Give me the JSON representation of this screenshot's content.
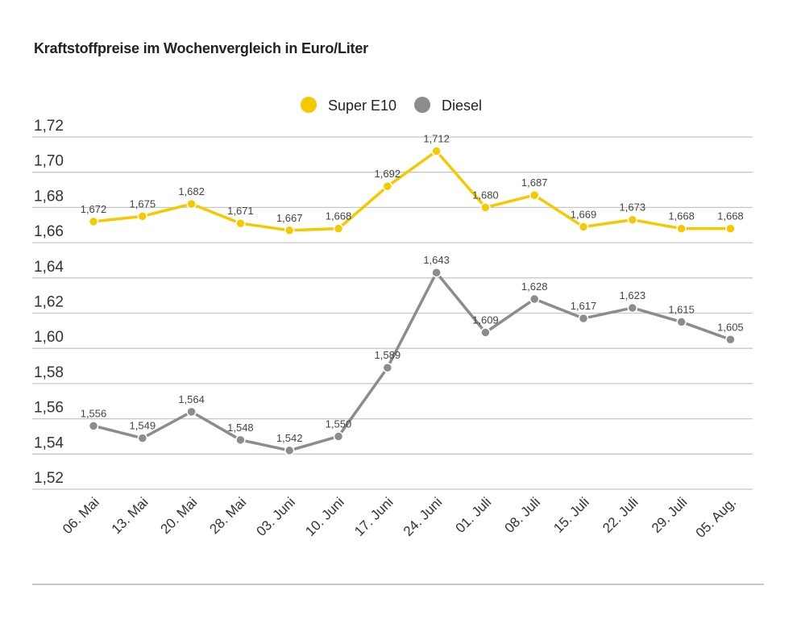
{
  "chart_data": {
    "type": "line",
    "title": "Kraftstoffpreise im Wochenvergleich in Euro/Liter",
    "categories": [
      "06. Mai",
      "13. Mai",
      "20. Mai",
      "28. Mai",
      "03. Juni",
      "10. Juni",
      "17. Juni",
      "24. Juni",
      "01. Juli",
      "08. Juli",
      "15. Juli",
      "22. Juli",
      "29. Juli",
      "05. Aug."
    ],
    "series": [
      {
        "name": "Super E10",
        "color": "#f5c900",
        "values": [
          1.672,
          1.675,
          1.682,
          1.671,
          1.667,
          1.668,
          1.692,
          1.712,
          1.68,
          1.687,
          1.669,
          1.673,
          1.668,
          1.668
        ],
        "labels": [
          "1,672",
          "1,675",
          "1,682",
          "1,671",
          "1,667",
          "1,668",
          "1,692",
          "1,712",
          "1,680",
          "1,687",
          "1,669",
          "1,673",
          "1,668",
          "1,668"
        ]
      },
      {
        "name": "Diesel",
        "color": "#8c8c8c",
        "values": [
          1.556,
          1.549,
          1.564,
          1.548,
          1.542,
          1.55,
          1.589,
          1.643,
          1.609,
          1.628,
          1.617,
          1.623,
          1.615,
          1.605
        ],
        "labels": [
          "1,556",
          "1,549",
          "1,564",
          "1,548",
          "1,542",
          "1,550",
          "1,589",
          "1,643",
          "1,609",
          "1,628",
          "1,617",
          "1,623",
          "1,615",
          "1,605"
        ]
      }
    ],
    "ylim": [
      1.52,
      1.72
    ],
    "yticks": [
      1.52,
      1.54,
      1.56,
      1.58,
      1.6,
      1.62,
      1.64,
      1.66,
      1.68,
      1.7,
      1.72
    ],
    "ytick_labels": [
      "1,52",
      "1,54",
      "1,56",
      "1,58",
      "1,60",
      "1,62",
      "1,64",
      "1,66",
      "1,68",
      "1,70",
      "1,72"
    ],
    "grid": true,
    "legend": "top-center"
  }
}
